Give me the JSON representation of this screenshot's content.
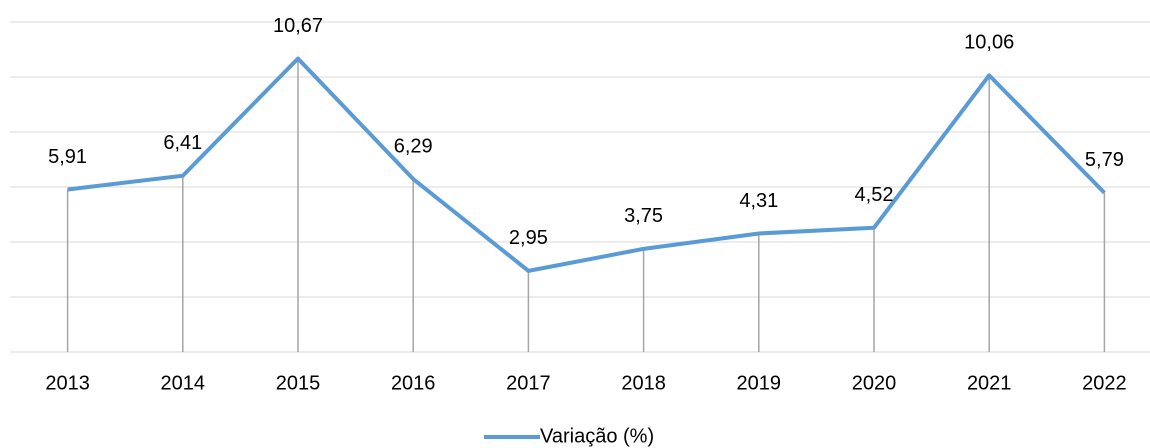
{
  "chart_data": {
    "type": "line",
    "categories": [
      "2013",
      "2014",
      "2015",
      "2016",
      "2017",
      "2018",
      "2019",
      "2020",
      "2021",
      "2022"
    ],
    "series": [
      {
        "name": "Variação (%)",
        "color": "#5b9bd5",
        "values": [
          5.91,
          6.41,
          10.67,
          6.29,
          2.95,
          3.75,
          4.31,
          4.52,
          10.06,
          5.79
        ],
        "value_labels": [
          "5,91",
          "6,41",
          "10,67",
          "6,29",
          "2,95",
          "3,75",
          "4,31",
          "4,52",
          "10,06",
          "5,79"
        ]
      }
    ],
    "ylim": [
      0,
      12
    ],
    "yticks": [
      0,
      2,
      4,
      6,
      8,
      10,
      12
    ],
    "grid": true,
    "legend": "bottom"
  }
}
